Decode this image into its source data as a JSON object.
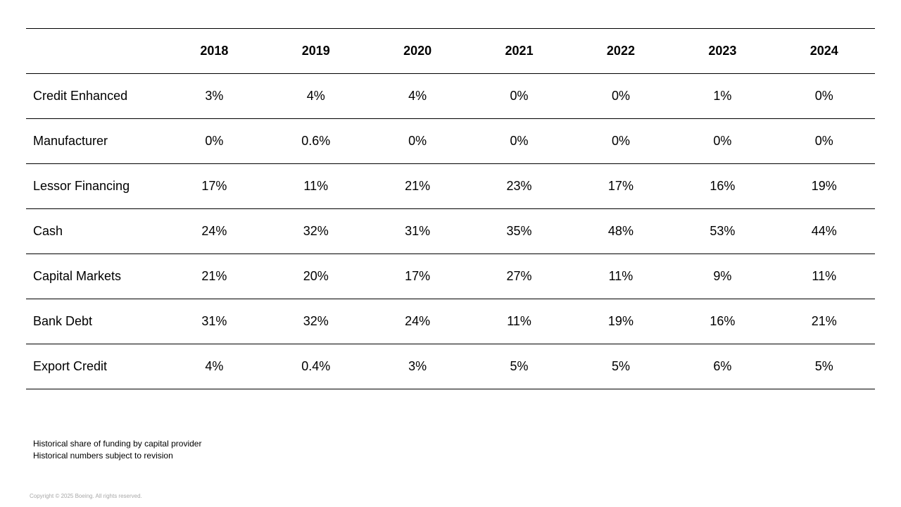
{
  "table": {
    "header": [
      "",
      "2018",
      "2019",
      "2020",
      "2021",
      "2022",
      "2023",
      "2024"
    ],
    "rows": [
      {
        "label": "Credit Enhanced",
        "values": [
          "3%",
          "4%",
          "4%",
          "0%",
          "0%",
          "1%",
          "0%"
        ]
      },
      {
        "label": "Manufacturer",
        "values": [
          "0%",
          "0.6%",
          "0%",
          "0%",
          "0%",
          "0%",
          "0%"
        ]
      },
      {
        "label": "Lessor Financing",
        "values": [
          "17%",
          "11%",
          "21%",
          "23%",
          "17%",
          "16%",
          "19%"
        ]
      },
      {
        "label": "Cash",
        "values": [
          "24%",
          "32%",
          "31%",
          "35%",
          "48%",
          "53%",
          "44%"
        ]
      },
      {
        "label": "Capital Markets",
        "values": [
          "21%",
          "20%",
          "17%",
          "27%",
          "11%",
          "9%",
          "11%"
        ]
      },
      {
        "label": "Bank Debt",
        "values": [
          "31%",
          "32%",
          "24%",
          "11%",
          "19%",
          "16%",
          "21%"
        ]
      },
      {
        "label": "Export Credit",
        "values": [
          "4%",
          "0.4%",
          "3%",
          "5%",
          "5%",
          "6%",
          "5%"
        ]
      }
    ]
  },
  "notes": {
    "line1": "Historical share of funding by capital provider",
    "line2": "Historical numbers subject to revision"
  },
  "copyright": "Copyright © 2025 Boeing. All rights reserved."
}
